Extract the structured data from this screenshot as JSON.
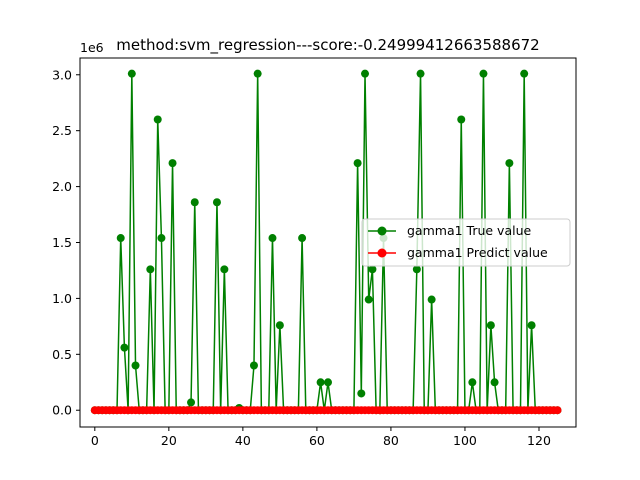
{
  "chart_data": {
    "type": "line",
    "title": "method:svm_regression---score:-0.24999412663588672",
    "offset_text": "1e6",
    "xlabel": "",
    "ylabel": "",
    "xlim": [
      -4,
      130
    ],
    "ylim": [
      -0.15,
      3.15
    ],
    "x_ticks": [
      0,
      20,
      40,
      60,
      80,
      100,
      120
    ],
    "y_ticks": [
      0.0,
      0.5,
      1.0,
      1.5,
      2.0,
      2.5,
      3.0
    ],
    "y_tick_labels": [
      "0.0",
      "0.5",
      "1.0",
      "1.5",
      "2.0",
      "2.5",
      "3.0"
    ],
    "grid": false,
    "legend_position": "center-right",
    "series": [
      {
        "name": "gamma1 True value",
        "color": "#008000",
        "marker": "circle",
        "x": [
          0,
          1,
          2,
          3,
          4,
          5,
          6,
          7,
          8,
          9,
          10,
          11,
          12,
          13,
          14,
          15,
          16,
          17,
          18,
          19,
          20,
          21,
          22,
          23,
          24,
          25,
          26,
          27,
          28,
          29,
          30,
          31,
          32,
          33,
          34,
          35,
          36,
          37,
          38,
          39,
          40,
          41,
          42,
          43,
          44,
          45,
          46,
          47,
          48,
          49,
          50,
          51,
          52,
          53,
          54,
          55,
          56,
          57,
          58,
          59,
          60,
          61,
          62,
          63,
          64,
          65,
          66,
          67,
          68,
          69,
          70,
          71,
          72,
          73,
          74,
          75,
          76,
          77,
          78,
          79,
          80,
          81,
          82,
          83,
          84,
          85,
          86,
          87,
          88,
          89,
          90,
          91,
          92,
          93,
          94,
          95,
          96,
          97,
          98,
          99,
          100,
          101,
          102,
          103,
          104,
          105,
          106,
          107,
          108,
          109,
          110,
          111,
          112,
          113,
          114,
          115,
          116,
          117,
          118,
          119,
          120,
          121,
          122,
          123,
          124,
          125
        ],
        "values": [
          0,
          0,
          0,
          0,
          0,
          0,
          0,
          1.54,
          0.56,
          0,
          3.01,
          0.4,
          0,
          0,
          0,
          1.26,
          0,
          2.6,
          1.54,
          0,
          0,
          2.21,
          0,
          0,
          0,
          0,
          0.07,
          1.86,
          0,
          0,
          0,
          0,
          0,
          1.86,
          0,
          1.26,
          0,
          0,
          0,
          0.02,
          0,
          0,
          0,
          0.4,
          3.01,
          0,
          0,
          0,
          1.54,
          0,
          0.76,
          0,
          0,
          0,
          0,
          0,
          1.54,
          0,
          0,
          0,
          0,
          0.25,
          0,
          0.25,
          0,
          0,
          0,
          0,
          0,
          0,
          0,
          2.21,
          0.15,
          3.01,
          0.99,
          1.26,
          0,
          0,
          1.54,
          0,
          0,
          0,
          0,
          0,
          0,
          0,
          0,
          1.26,
          3.01,
          0,
          0,
          0.99,
          0,
          0,
          0,
          0,
          0,
          0,
          0,
          2.6,
          0,
          0,
          0.25,
          0,
          0,
          3.01,
          0,
          0.76,
          0.25,
          0,
          0,
          0,
          2.21,
          0,
          0,
          0,
          3.01,
          0,
          0.76,
          0,
          0,
          0,
          0,
          0,
          0,
          0
        ]
      },
      {
        "name": "gamma1 Predict value",
        "color": "#ff0000",
        "marker": "circle",
        "x": [
          0,
          1,
          2,
          3,
          4,
          5,
          6,
          7,
          8,
          9,
          10,
          11,
          12,
          13,
          14,
          15,
          16,
          17,
          18,
          19,
          20,
          21,
          22,
          23,
          24,
          25,
          26,
          27,
          28,
          29,
          30,
          31,
          32,
          33,
          34,
          35,
          36,
          37,
          38,
          39,
          40,
          41,
          42,
          43,
          44,
          45,
          46,
          47,
          48,
          49,
          50,
          51,
          52,
          53,
          54,
          55,
          56,
          57,
          58,
          59,
          60,
          61,
          62,
          63,
          64,
          65,
          66,
          67,
          68,
          69,
          70,
          71,
          72,
          73,
          74,
          75,
          76,
          77,
          78,
          79,
          80,
          81,
          82,
          83,
          84,
          85,
          86,
          87,
          88,
          89,
          90,
          91,
          92,
          93,
          94,
          95,
          96,
          97,
          98,
          99,
          100,
          101,
          102,
          103,
          104,
          105,
          106,
          107,
          108,
          109,
          110,
          111,
          112,
          113,
          114,
          115,
          116,
          117,
          118,
          119,
          120,
          121,
          122,
          123,
          124,
          125
        ],
        "values": [
          0,
          0,
          0,
          0,
          0,
          0,
          0,
          0,
          0,
          0,
          0,
          0,
          0,
          0,
          0,
          0,
          0,
          0,
          0,
          0,
          0,
          0,
          0,
          0,
          0,
          0,
          0,
          0,
          0,
          0,
          0,
          0,
          0,
          0,
          0,
          0,
          0,
          0,
          0,
          0,
          0,
          0,
          0,
          0,
          0,
          0,
          0,
          0,
          0,
          0,
          0,
          0,
          0,
          0,
          0,
          0,
          0,
          0,
          0,
          0,
          0,
          0,
          0,
          0,
          0,
          0,
          0,
          0,
          0,
          0,
          0,
          0,
          0,
          0,
          0,
          0,
          0,
          0,
          0,
          0,
          0,
          0,
          0,
          0,
          0,
          0,
          0,
          0,
          0,
          0,
          0,
          0,
          0,
          0,
          0,
          0,
          0,
          0,
          0,
          0,
          0,
          0,
          0,
          0,
          0,
          0,
          0,
          0,
          0,
          0,
          0,
          0,
          0,
          0,
          0,
          0,
          0,
          0,
          0,
          0,
          0,
          0,
          0,
          0,
          0,
          0
        ]
      }
    ]
  }
}
